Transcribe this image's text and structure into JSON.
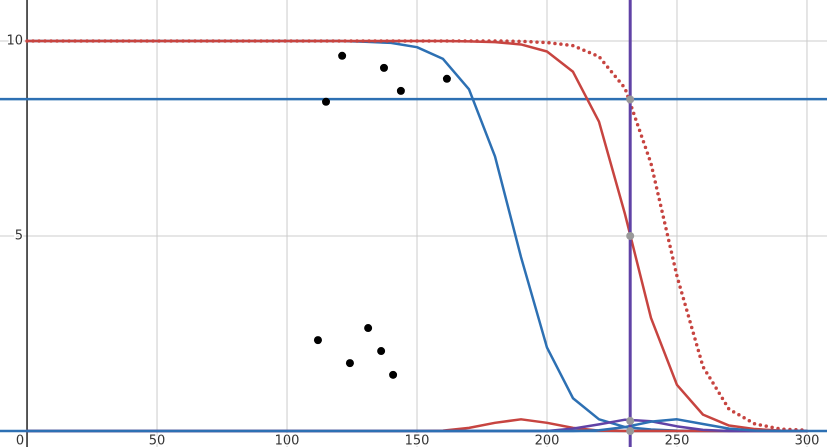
{
  "chart_data": {
    "type": "line",
    "xlim": [
      -10.4,
      307.7
    ],
    "ylim": [
      -0.41,
      11.05
    ],
    "xticks": [
      0,
      50,
      100,
      150,
      200,
      250,
      300
    ],
    "yticks": [
      5,
      10
    ],
    "grid": true,
    "x": [
      0,
      10,
      20,
      30,
      40,
      50,
      60,
      70,
      80,
      90,
      100,
      110,
      120,
      130,
      140,
      150,
      160,
      170,
      180,
      190,
      200,
      210,
      220,
      230,
      240,
      250,
      260,
      270,
      280,
      290,
      300
    ],
    "series": [
      {
        "color": "#2d70b3",
        "style": "solid",
        "values": [
          10,
          10,
          10,
          10,
          10,
          10,
          10,
          10,
          10,
          10,
          10,
          10,
          10,
          9.98,
          9.95,
          9.84,
          9.54,
          8.76,
          7.04,
          4.46,
          2.14,
          0.84,
          0.3,
          0.1,
          0.04,
          0.01,
          0,
          0,
          0,
          0,
          0
        ]
      },
      {
        "color": "#c74440",
        "style": "solid",
        "values": [
          10,
          10,
          10,
          10,
          10,
          10,
          10,
          10,
          10,
          10,
          10,
          10,
          10,
          10,
          10,
          10,
          10,
          9.99,
          9.97,
          9.91,
          9.73,
          9.21,
          7.93,
          5.56,
          2.9,
          1.18,
          0.42,
          0.14,
          0.05,
          0.01,
          0
        ]
      },
      {
        "color": "#c74440",
        "style": "dotted",
        "values": [
          10,
          10,
          10,
          10,
          10,
          10,
          10,
          10,
          10,
          10,
          10,
          10,
          10,
          10,
          10,
          10,
          10,
          10,
          10,
          9.99,
          9.96,
          9.88,
          9.6,
          8.79,
          6.86,
          3.97,
          1.65,
          0.56,
          0.18,
          0.05,
          0.02
        ]
      },
      {
        "color": "#c74440",
        "style": "solid",
        "values": [
          0,
          0,
          0,
          0,
          0,
          0,
          0,
          0,
          0,
          0,
          0,
          0,
          0,
          0,
          0,
          0,
          0.01,
          0.08,
          0.21,
          0.3,
          0.21,
          0.08,
          0.01,
          0,
          0,
          0,
          0,
          0,
          0,
          0,
          0
        ]
      },
      {
        "color": "#6042a6",
        "style": "solid",
        "values": [
          0,
          0,
          0,
          0,
          0,
          0,
          0,
          0,
          0,
          0,
          0,
          0,
          0,
          0,
          0,
          0,
          0,
          0,
          0,
          0,
          0,
          0.06,
          0.17,
          0.29,
          0.25,
          0.12,
          0.03,
          0,
          0,
          0,
          0
        ]
      },
      {
        "color": "#2d70b3",
        "style": "solid",
        "values": [
          0,
          0,
          0,
          0,
          0,
          0,
          0,
          0,
          0,
          0,
          0,
          0,
          0,
          0,
          0,
          0,
          0,
          0,
          0,
          0,
          0,
          0,
          0.02,
          0.1,
          0.24,
          0.3,
          0.18,
          0.06,
          0.01,
          0,
          0
        ]
      }
    ],
    "reference_lines": [
      {
        "axis": "y",
        "value": 8.51,
        "color": "#2d70b3"
      },
      {
        "axis": "y",
        "value": 0,
        "color": "#2d70b3"
      },
      {
        "axis": "x",
        "value": 232,
        "color": "#6042a6"
      }
    ],
    "scatter": {
      "color": "#000000",
      "x": [
        121.2,
        137.3,
        161.5,
        143.8,
        115,
        131.2,
        111.9,
        136.2,
        124.2,
        140.8
      ],
      "values": [
        9.62,
        9.31,
        9.03,
        8.72,
        8.44,
        2.64,
        2.33,
        2.05,
        1.74,
        1.44
      ]
    },
    "highlight_points": {
      "color": "#999999",
      "x": [
        232,
        232,
        232,
        232
      ],
      "values": [
        8.5,
        5.0,
        0.26,
        0
      ]
    }
  }
}
